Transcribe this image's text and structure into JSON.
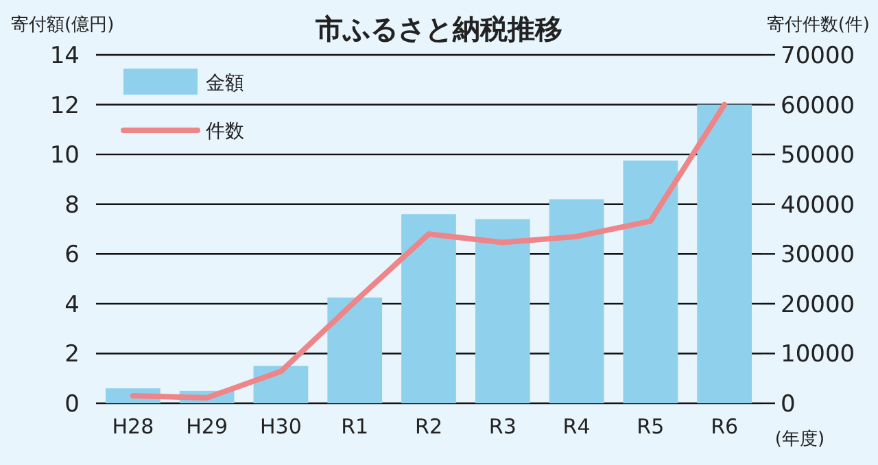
{
  "chart_data": {
    "type": "bar",
    "title": "市ふるさと納税推移",
    "ylabel": "寄付額(億円)",
    "y2label": "寄付件数(件)",
    "xlabel": "(年度)",
    "categories": [
      "H28",
      "H29",
      "H30",
      "R1",
      "R2",
      "R3",
      "R4",
      "R5",
      "R6"
    ],
    "series": [
      {
        "name": "金額",
        "color": "#8fd1ec",
        "values": [
          0.6,
          0.5,
          1.5,
          4.25,
          7.6,
          7.4,
          8.2,
          9.75,
          12.0
        ]
      },
      {
        "name": "件数",
        "type": "line",
        "axis": "y2",
        "color": "#ee8589",
        "values": [
          1500,
          1100,
          6400,
          20400,
          34000,
          32300,
          33500,
          36600,
          60000
        ]
      }
    ],
    "ylim": [
      0,
      14
    ],
    "yticks": [
      0,
      2,
      4,
      6,
      8,
      10,
      12,
      14
    ],
    "y2lim": [
      0,
      70000
    ],
    "y2ticks": [
      0,
      10000,
      20000,
      30000,
      40000,
      50000,
      60000,
      70000
    ],
    "grid": "y",
    "legend": "top left",
    "marker": "none",
    "line_style": "solid"
  }
}
